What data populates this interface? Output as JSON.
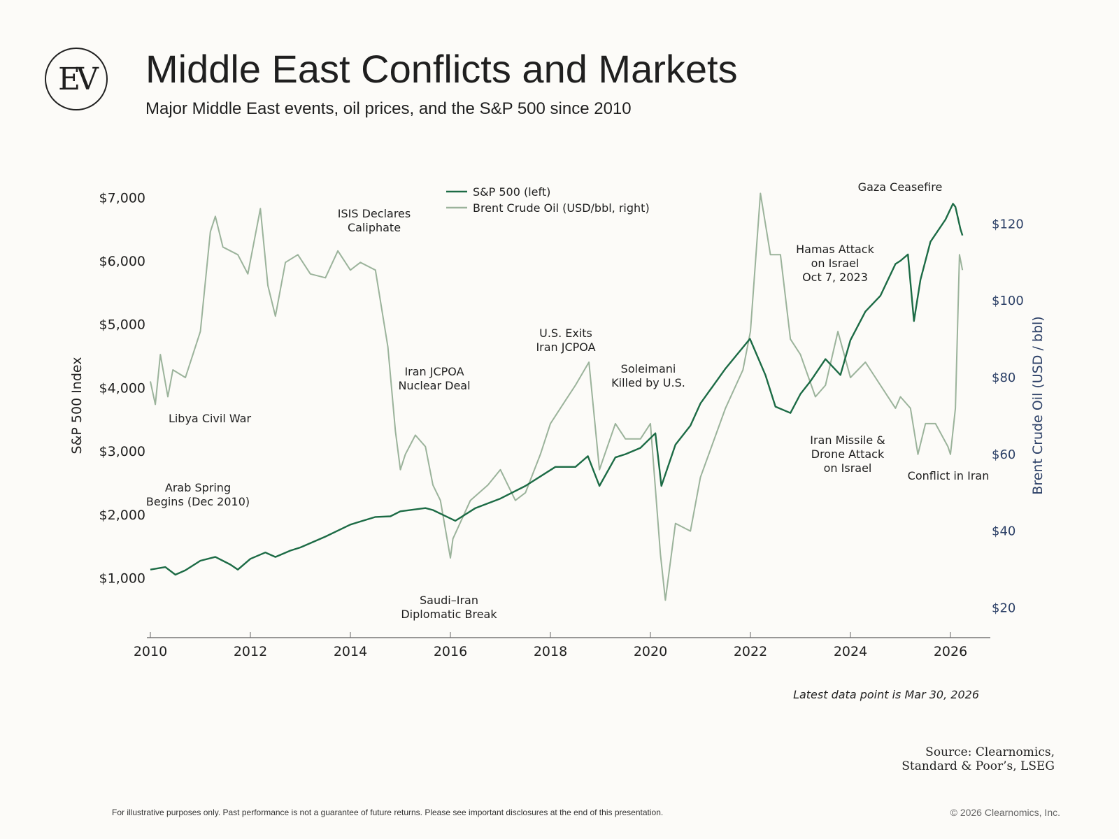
{
  "header": {
    "logo_text": "EV",
    "title": "Middle East Conflicts and Markets",
    "subtitle": "Major Middle East events, oil prices, and the S&P 500 since 2010"
  },
  "colors": {
    "sp500": "#1c6b45",
    "brent": "#9bb39b",
    "right_axis": "#2b3f66",
    "text": "#1f1f1f"
  },
  "chart_data": {
    "type": "line",
    "xlabel": "",
    "ylabel": "S&P 500 Index",
    "ylabel_right": "Brent Crude Oil (USD / bbl)",
    "xlim": [
      2010.0,
      2027.0
    ],
    "ylim_left": [
      0,
      7000
    ],
    "ylim_right": [
      14,
      130
    ],
    "x_ticks": [
      "2010",
      "2012",
      "2014",
      "2016",
      "2018",
      "2020",
      "2022",
      "2024",
      "2026"
    ],
    "y_ticks_left": [
      "$1,000",
      "$2,000",
      "$3,000",
      "$4,000",
      "$5,000",
      "$6,000",
      "$7,000"
    ],
    "y_ticks_right": [
      "$20",
      "$40",
      "$60",
      "$80",
      "$100",
      "$120"
    ],
    "legend": {
      "position": "top-center",
      "entries": [
        "S&P 500 (left)",
        "Brent Crude Oil (USD/bbl, right)"
      ]
    },
    "series": [
      {
        "name": "S&P 500 (left)",
        "axis": "left",
        "x": [
          2010.0,
          2010.3,
          2010.5,
          2010.7,
          2011.0,
          2011.3,
          2011.6,
          2011.75,
          2012.0,
          2012.3,
          2012.5,
          2012.8,
          2013.0,
          2013.5,
          2014.0,
          2014.5,
          2014.8,
          2015.0,
          2015.5,
          2015.65,
          2016.1,
          2016.5,
          2017.0,
          2017.5,
          2018.0,
          2018.1,
          2018.5,
          2018.75,
          2018.98,
          2019.3,
          2019.5,
          2019.8,
          2020.1,
          2020.22,
          2020.5,
          2020.8,
          2021.0,
          2021.5,
          2021.99,
          2022.3,
          2022.5,
          2022.8,
          2023.0,
          2023.2,
          2023.5,
          2023.8,
          2024.0,
          2024.3,
          2024.6,
          2024.9,
          2025.0,
          2025.15,
          2025.27,
          2025.4,
          2025.6,
          2025.9,
          2026.05,
          2026.1,
          2026.2,
          2026.24
        ],
        "values": [
          1130,
          1170,
          1050,
          1120,
          1270,
          1330,
          1210,
          1130,
          1300,
          1400,
          1330,
          1430,
          1480,
          1650,
          1840,
          1960,
          1970,
          2050,
          2100,
          2070,
          1900,
          2100,
          2250,
          2450,
          2700,
          2750,
          2750,
          2920,
          2450,
          2900,
          2950,
          3050,
          3280,
          2450,
          3100,
          3400,
          3750,
          4300,
          4770,
          4200,
          3700,
          3600,
          3900,
          4100,
          4450,
          4200,
          4750,
          5200,
          5450,
          5950,
          6000,
          6100,
          5050,
          5700,
          6300,
          6650,
          6900,
          6850,
          6500,
          6400
        ]
      },
      {
        "name": "Brent Crude Oil (USD/bbl, right)",
        "axis": "right",
        "x": [
          2010.0,
          2010.1,
          2010.2,
          2010.35,
          2010.45,
          2010.7,
          2011.0,
          2011.2,
          2011.3,
          2011.45,
          2011.75,
          2011.95,
          2012.2,
          2012.35,
          2012.5,
          2012.7,
          2012.95,
          2013.2,
          2013.5,
          2013.75,
          2014.0,
          2014.2,
          2014.5,
          2014.6,
          2014.75,
          2014.9,
          2015.0,
          2015.1,
          2015.3,
          2015.5,
          2015.65,
          2015.8,
          2016.0,
          2016.05,
          2016.4,
          2016.75,
          2017.0,
          2017.3,
          2017.5,
          2017.8,
          2018.0,
          2018.3,
          2018.5,
          2018.77,
          2018.98,
          2019.3,
          2019.5,
          2019.8,
          2020.0,
          2020.2,
          2020.3,
          2020.5,
          2020.8,
          2021.0,
          2021.5,
          2021.85,
          2022.0,
          2022.2,
          2022.4,
          2022.6,
          2022.8,
          2023.0,
          2023.3,
          2023.5,
          2023.75,
          2024.0,
          2024.3,
          2024.6,
          2024.9,
          2025.0,
          2025.2,
          2025.35,
          2025.5,
          2025.7,
          2025.95,
          2026.0,
          2026.1,
          2026.18,
          2026.24
        ],
        "values": [
          79,
          73,
          86,
          75,
          82,
          80,
          92,
          118,
          122,
          114,
          112,
          107,
          124,
          104,
          96,
          110,
          112,
          107,
          106,
          113,
          108,
          110,
          108,
          100,
          88,
          66,
          56,
          60,
          65,
          62,
          52,
          48,
          33,
          38,
          48,
          52,
          56,
          48,
          50,
          60,
          68,
          74,
          78,
          84,
          56,
          68,
          64,
          64,
          68,
          34,
          22,
          42,
          40,
          54,
          72,
          82,
          92,
          128,
          112,
          112,
          90,
          86,
          75,
          78,
          92,
          80,
          84,
          78,
          72,
          75,
          72,
          60,
          68,
          68,
          62,
          60,
          72,
          112,
          108
        ]
      }
    ],
    "annotations": [
      {
        "label": [
          "Arab Spring",
          "Begins (Dec 2010)"
        ]
      },
      {
        "label": [
          "Libya Civil War"
        ]
      },
      {
        "label": [
          "ISIS Declares",
          "Caliphate"
        ]
      },
      {
        "label": [
          "Iran JCPOA",
          "Nuclear Deal"
        ]
      },
      {
        "label": [
          "Saudi–Iran",
          "Diplomatic Break"
        ]
      },
      {
        "label": [
          "U.S. Exits",
          "Iran JCPOA"
        ]
      },
      {
        "label": [
          "Soleimani",
          "Killed by U.S."
        ]
      },
      {
        "label": [
          "Hamas Attack",
          "on Israel",
          "Oct 7, 2023"
        ]
      },
      {
        "label": [
          "Iran Missile &",
          "Drone Attack",
          "on Israel"
        ]
      },
      {
        "label": [
          "Gaza Ceasefire"
        ]
      },
      {
        "label": [
          "Conflict in Iran"
        ]
      }
    ]
  },
  "footer": {
    "latest": "Latest data point is Mar 30, 2026",
    "source_line1": "Source: Clearnomics,",
    "source_line2": "Standard & Poor’s, LSEG",
    "disclaimer": "For illustrative purposes only. Past performance is not a guarantee of future returns. Please see important disclosures at the end of this presentation.",
    "copyright": "© 2026 Clearnomics, Inc."
  }
}
